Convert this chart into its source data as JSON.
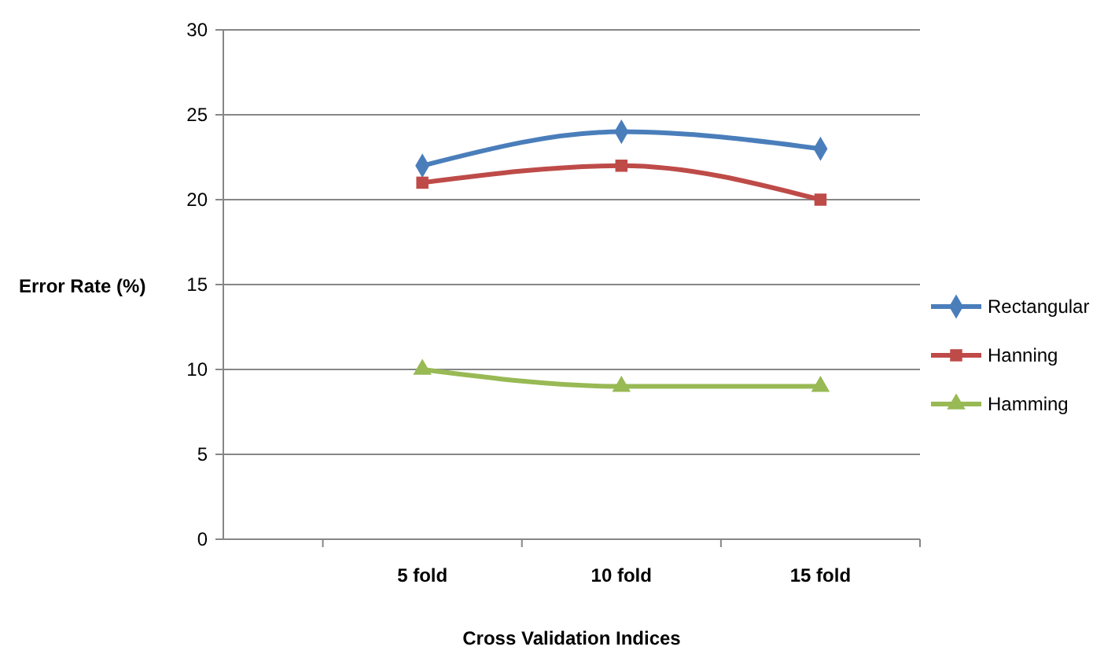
{
  "chart_data": {
    "type": "line",
    "xlabel": "Cross Validation Indices",
    "ylabel": "Error Rate (%)",
    "categories": [
      "5 fold",
      "10 fold",
      "15 fold"
    ],
    "series": [
      {
        "name": "Rectangular",
        "color": "#4a7ebb",
        "values": [
          22,
          24,
          23
        ],
        "marker": "diamond"
      },
      {
        "name": "Hanning",
        "color": "#be4b48",
        "values": [
          21,
          22,
          20
        ],
        "marker": "square"
      },
      {
        "name": "Hamming",
        "color": "#98b954",
        "values": [
          10,
          9,
          9
        ],
        "marker": "triangle"
      }
    ],
    "ylim": [
      0,
      30
    ],
    "yticks": [
      0,
      5,
      10,
      15,
      20,
      25,
      30
    ],
    "grid": "y",
    "legend": "right"
  }
}
